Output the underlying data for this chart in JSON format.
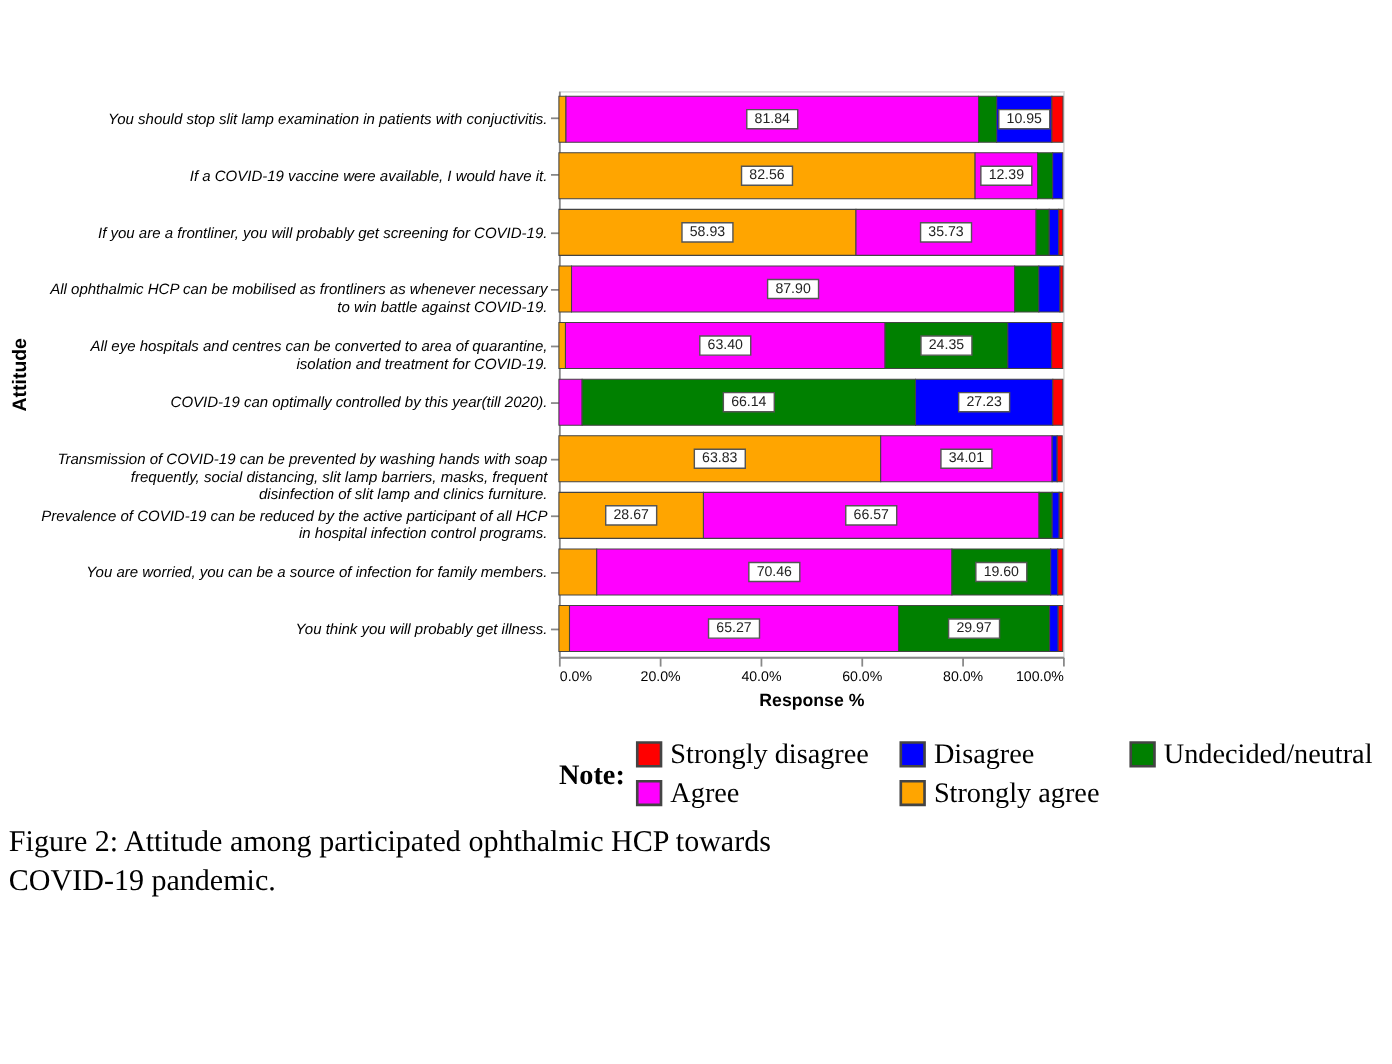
{
  "chart_data": {
    "type": "bar",
    "orientation": "horizontal",
    "stacked": true,
    "title": "Figure 2: Attitude among participated ophthalmic HCP towards COVID-19 pandemic.",
    "xlabel": "Response %",
    "ylabel": "Attitude",
    "legend_title": "Note:",
    "legend": "bottom",
    "categories": [
      "You should stop slit lamp examination in patients with conjuctivitis.",
      "If a COVID-19 vaccine were available, I would have it.",
      "If you are a frontliner, you will probably get screening for COVID-19.",
      "All ophthalmic HCP can be mobilised as frontliners as whenever necessary to win battle against COVID-19.",
      "All eye hospitals and centres can be converted to area of quarantine, isolation and treatment for COVID-19.",
      "COVID-19 can optimally controlled by this year(till 2020).",
      "Transmission of COVID-19 can be prevented by washing hands with soap frequently, social distancing, slit lamp barriers, masks, frequent disinfection of slit lamp and clinics furniture.",
      "Prevalence of COVID-19 can be reduced by the active participant of all HCP in hospital infection control programs.",
      "You are worried, you can be a source of infection for family members.",
      "You think you will probably get illness."
    ],
    "series": [
      {
        "name": "Strongly agree",
        "color": "#ffa500",
        "values": [
          1.4,
          82.56,
          58.93,
          2.5,
          1.3,
          null,
          63.83,
          28.67,
          7.5,
          2.1
        ],
        "value_labels": [
          null,
          "82.56",
          "58.93",
          null,
          null,
          null,
          "63.83",
          "28.67",
          null,
          null
        ]
      },
      {
        "name": "Agree",
        "color": "#ff00ff",
        "values": [
          81.84,
          12.39,
          35.73,
          87.9,
          63.4,
          4.6,
          34.01,
          66.57,
          70.46,
          65.27
        ],
        "value_labels": [
          "81.84",
          "12.39",
          "35.73",
          "87.90",
          "63.40",
          null,
          "34.01",
          "66.57",
          "70.46",
          "65.27"
        ]
      },
      {
        "name": "Undecided/neutral",
        "color": "#008000",
        "values": [
          3.6,
          3.0,
          2.6,
          4.8,
          24.35,
          66.14,
          null,
          2.6,
          19.6,
          29.97
        ],
        "value_labels": [
          null,
          null,
          null,
          null,
          "24.35",
          "66.14",
          null,
          null,
          "19.60",
          "29.97"
        ]
      },
      {
        "name": "Disagree",
        "color": "#0000ff",
        "values": [
          10.95,
          2.0,
          1.9,
          4.2,
          8.7,
          27.23,
          1.0,
          1.4,
          1.4,
          1.7
        ],
        "value_labels": [
          "10.95",
          null,
          null,
          null,
          null,
          "27.23",
          null,
          null,
          null,
          null
        ]
      },
      {
        "name": "Strongly disagree",
        "color": "#ff0000",
        "values": [
          2.2,
          null,
          0.8,
          0.6,
          2.2,
          2.0,
          1.0,
          0.7,
          1.0,
          0.9
        ],
        "value_labels": [
          null,
          null,
          null,
          null,
          null,
          null,
          null,
          null,
          null,
          null
        ]
      }
    ],
    "xlim": [
      0,
      100
    ],
    "xticks": [
      {
        "value": 0,
        "label": "0.0%"
      },
      {
        "value": 20,
        "label": "20.0%"
      },
      {
        "value": 40,
        "label": "40.0%"
      },
      {
        "value": 60,
        "label": "60.0%"
      },
      {
        "value": 80,
        "label": "80.0%"
      },
      {
        "value": 100,
        "label": "100.0%"
      }
    ],
    "grid": false
  }
}
